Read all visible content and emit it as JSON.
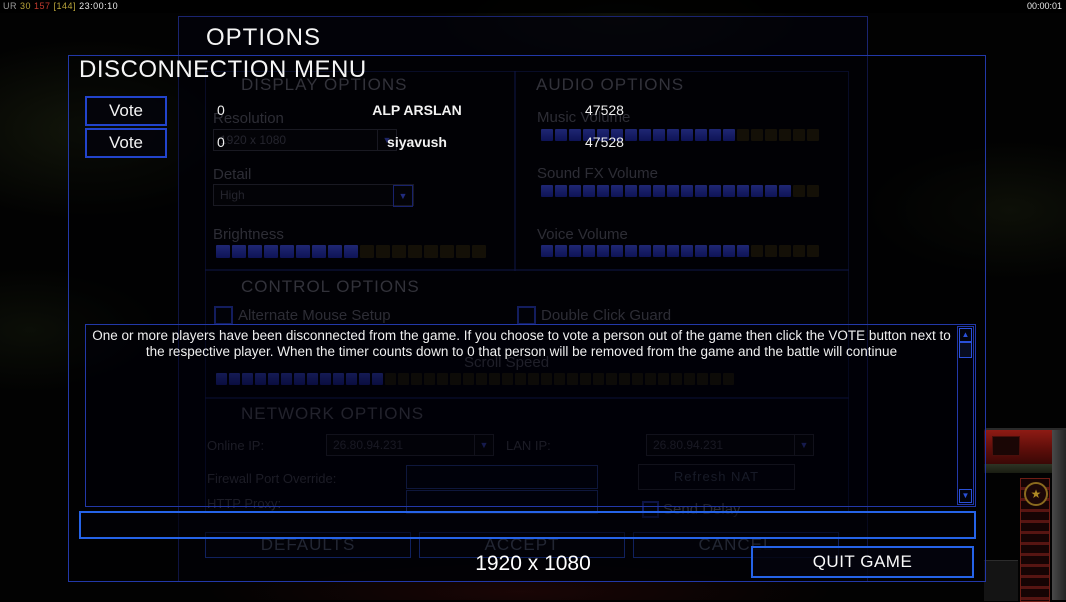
{
  "hud": {
    "left": {
      "label_ur": "UR",
      "value_yellow": "30",
      "value_red": "157",
      "value_bracket": "[144]",
      "clock": "23:00:10"
    },
    "right_clock": "00:00:01"
  },
  "options_panel": {
    "title": "OPTIONS",
    "display": {
      "heading": "DISPLAY OPTIONS",
      "resolution_label": "Resolution",
      "resolution_value": "1920 x 1080",
      "detail_label": "Detail",
      "detail_value": "High",
      "brightness_label": "Brightness",
      "brightness_slider": {
        "filled": 9,
        "total": 17
      }
    },
    "audio": {
      "heading": "AUDIO OPTIONS",
      "music_label": "Music Volume",
      "music_slider": {
        "filled": 14,
        "total": 20
      },
      "sfx_label": "Sound FX Volume",
      "sfx_slider": {
        "filled": 18,
        "total": 20
      },
      "voice_label": "Voice Volume",
      "voice_slider": {
        "filled": 15,
        "total": 20
      }
    },
    "control": {
      "heading": "CONTROL OPTIONS",
      "alt_mouse_label": "Alternate Mouse Setup",
      "double_click_label": "Double Click Guard",
      "scroll_speed_label": "Scroll Speed",
      "scroll_slider": {
        "filled": 13,
        "total": 40
      }
    },
    "network": {
      "heading": "NETWORK OPTIONS",
      "online_ip_label": "Online IP:",
      "online_ip_value": "26.80.94.231",
      "lan_ip_label": "LAN IP:",
      "lan_ip_value": "26.80.94.231",
      "firewall_label": "Firewall Port Override:",
      "firewall_value": "",
      "refresh_nat_label": "Refresh NAT",
      "http_proxy_label": "HTTP Proxy:",
      "http_proxy_value": "",
      "send_delay_label": "Send Delay"
    },
    "buttons": {
      "defaults": "DEFAULTS",
      "accept": "ACCEPT",
      "cancel": "CANCEL"
    },
    "resolution_readout": "1920 x 1080"
  },
  "disconnection_menu": {
    "title": "DISCONNECTION MENU",
    "vote_button_label": "Vote",
    "players": [
      {
        "timer": "0",
        "name": "ALP ARSLAN",
        "ping": "47528"
      },
      {
        "timer": "0",
        "name": "siyavush",
        "ping": "47528"
      }
    ],
    "message": "One or more players have been disconnected from the game. If you choose to vote a person out of the game then click the VOTE button next to the respective player. When the timer counts down to 0 that person will be removed from the game and the battle will continue",
    "chat_input_value": "",
    "quit_button_label": "QUIT GAME"
  },
  "icons": {
    "dropdown_arrow": "dropdown-chevron-down-icon",
    "scroll_up": "scroll-up-arrow-icon",
    "scroll_down": "scroll-down-arrow-icon",
    "faction_star": "faction-star-icon",
    "star_glyph": "★",
    "up_glyph": "▲",
    "down_glyph": "▼"
  },
  "colors": {
    "bright_border_blue": "#2563e8",
    "panel_border_blue": "#2238a8",
    "dim_panel_border": "#1a2470",
    "slider_filled_blue": "#1f2fae",
    "slider_empty_olive": "#2f270e",
    "hud_red": "#c23a2e",
    "hud_yellow": "#b9a43a",
    "sidebar_red": "#8e1b14",
    "text_bright": "#f2f2f2",
    "text_dim": "#4e4e5a"
  }
}
